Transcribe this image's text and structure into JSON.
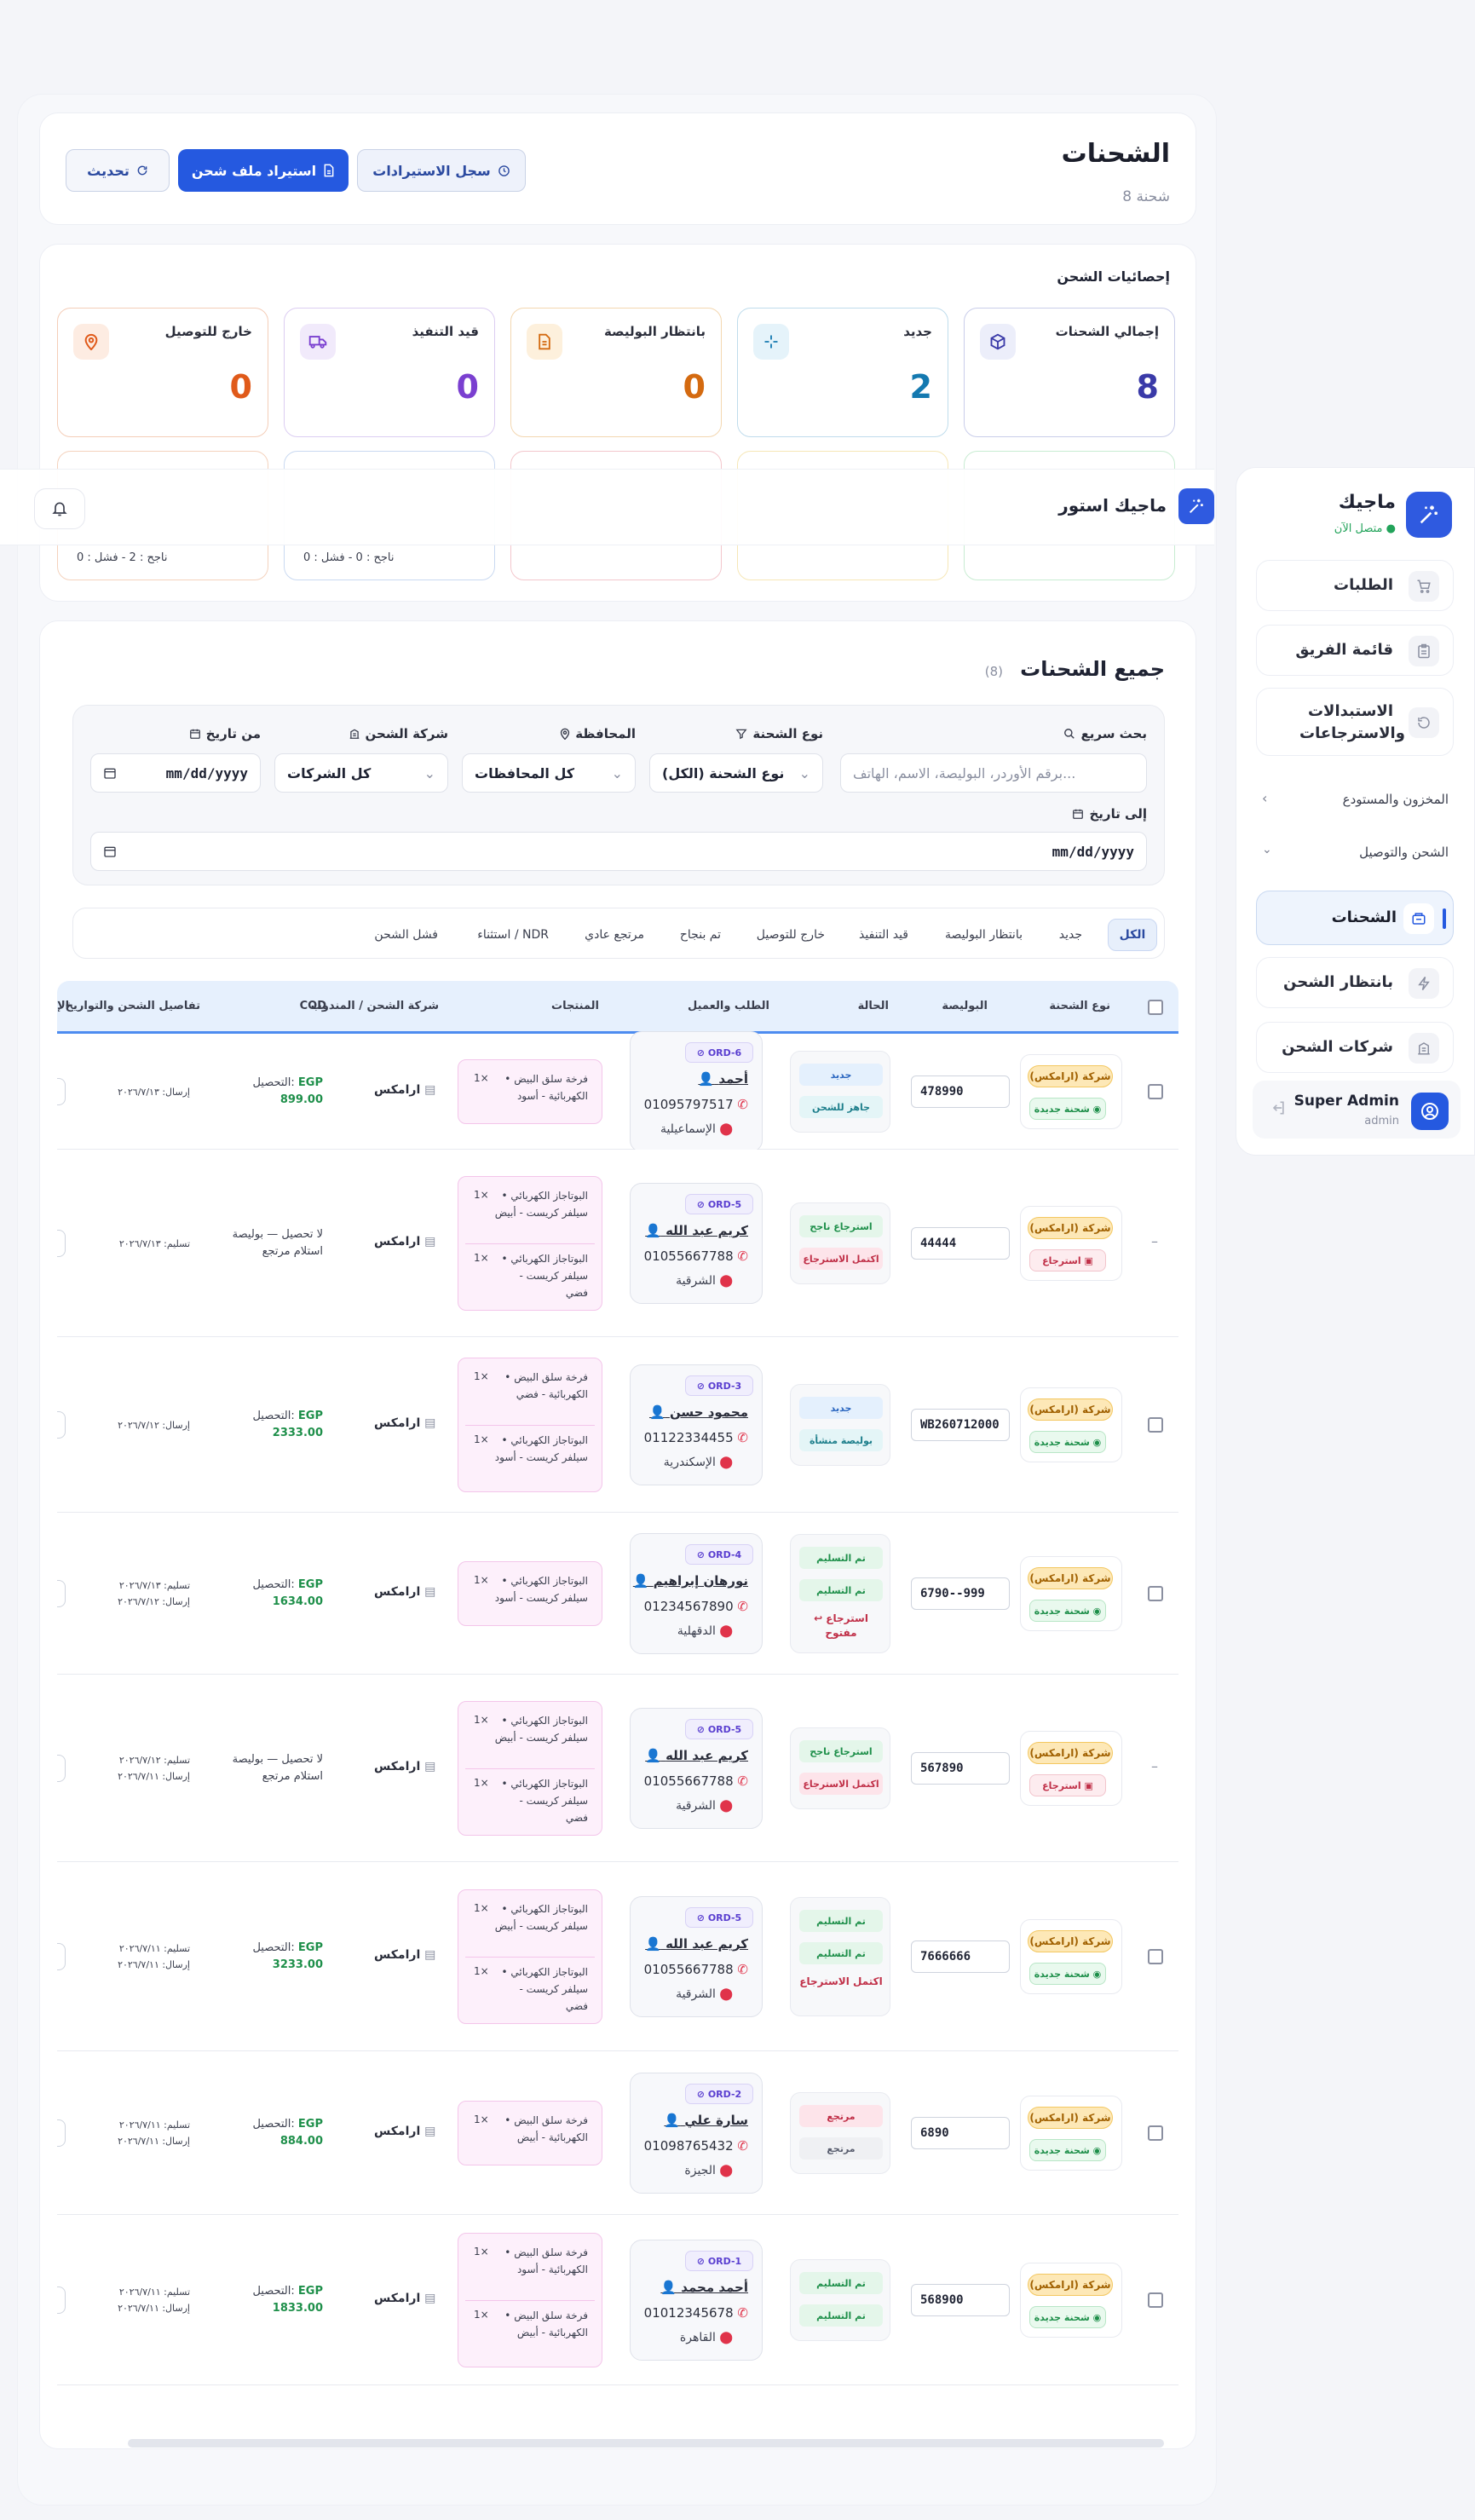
{
  "header": {
    "title": "الشحنات",
    "subtitle": "8 شحنة",
    "btn_refresh": "تحديث",
    "btn_import": "استيراد ملف شحن",
    "btn_log": "سجل الاستيرادات"
  },
  "stats": {
    "title": "إحصائيات الشحن",
    "cards": [
      {
        "label": "إجمالي الشحنات",
        "value": "8",
        "color": "#3a3aa8"
      },
      {
        "label": "جديد",
        "value": "2",
        "color": "#1479b0"
      },
      {
        "label": "بانتظار البوليصة",
        "value": "0",
        "color": "#d46a10"
      },
      {
        "label": "قيد التنفيذ",
        "value": "0",
        "color": "#7a3fd0"
      },
      {
        "label": "خارج للتوصيل",
        "value": "0",
        "color": "#e05a1a"
      }
    ],
    "row2_notes": [
      "ناجح : 2 - فشل : 0",
      "ناجح : 0 - فشل : 0"
    ]
  },
  "topbar": {
    "store_name": "ماجيك استور"
  },
  "sidebar": {
    "title": "ماجيك",
    "status": "متصل الآن",
    "items": [
      {
        "label": "الطلبات"
      },
      {
        "label": "قائمة الفريق"
      },
      {
        "label": "الاستبدالات والاسترجاعات"
      }
    ],
    "section_warehouse": "المخزون والمستودع",
    "section_shipping": "الشحن والتوصيل",
    "sub_items": [
      {
        "label": "الشحنات"
      },
      {
        "label": "بانتظار الشحن"
      },
      {
        "label": "شركات الشحن"
      }
    ],
    "user_name": "Super Admin",
    "user_role": "admin"
  },
  "table_section": {
    "title": "جميع الشحنات",
    "count": "(8)",
    "filters": {
      "search_label": "بحث سريع",
      "search_placeholder": "برقم الأوردر، البوليصة، الاسم، الهاتف...",
      "type_label": "نوع الشحنة",
      "type_value": "نوع الشحنة (الكل)",
      "gov_label": "المحافظة",
      "gov_value": "كل المحافظات",
      "company_label": "شركة الشحن",
      "company_value": "كل الشركات",
      "from_label": "من تاريخ",
      "from_value": "mm/dd/yyyy",
      "to_label": "إلى تاريخ",
      "to_value": "mm/dd/yyyy"
    },
    "tabs": [
      "الكل",
      "جديد",
      "بانتظار البوليصة",
      "قيد التنفيذ",
      "خارج للتوصيل",
      "تم بنجاح",
      "مرتجع عادي",
      "استثناء / NDR",
      "فشل الشحن"
    ],
    "columns": {
      "type": "نوع الشحنة",
      "awb": "البوليصة",
      "status": "الحالة",
      "order": "الطلب والعميل",
      "products": "المنتجات",
      "carrier": "شركة الشحن / المندوب",
      "cod": "COD",
      "details": "تفاصيل الشحن والتواريخ",
      "cut": "الإ"
    },
    "carrier_name": "ارامكس",
    "company_badge": "شركة (ارامكس)",
    "cod_prefix": "التحصيل:",
    "currency": "EGP",
    "rows": [
      {
        "kind": "شحنة جديدة",
        "awb": "478990",
        "statuses": [
          "جديد",
          "جاهز للشحن"
        ],
        "order": "ORD-6",
        "name": "أحمد",
        "phone": "01095797517",
        "city": "الإسماعيلية",
        "products": [
          {
            "name": "• فرخة سلق البيض الكهربائية - أسود",
            "qty": "1×"
          }
        ],
        "cod_amount": "899.00",
        "cod_text": "",
        "dates": [
          "إرسال: ٢٠٢٦/٧/١٣"
        ]
      },
      {
        "kind": "استرجاع",
        "awb": "44444",
        "statuses": [
          "استرجاع ناجح",
          "اكتمل الاسترجاع"
        ],
        "order": "ORD-5",
        "name": "كريم عبد الله",
        "phone": "01055667788",
        "city": "الشرقية",
        "products": [
          {
            "name": "• البوتاجاز الكهربائي سيلفر كريست - أبيض",
            "qty": "1×"
          },
          {
            "name": "• البوتاجاز الكهربائي سيلفر كريست - فضي",
            "qty": "1×"
          }
        ],
        "cod_amount": "",
        "cod_text": "لا تحصيل — بوليصة استلام مرتجع",
        "dates": [
          "تسليم: ٢٠٢٦/٧/١٣"
        ]
      },
      {
        "kind": "شحنة جديدة",
        "awb": "WB260712000",
        "statuses": [
          "جديد",
          "بوليصة منشأة"
        ],
        "order": "ORD-3",
        "name": "محمود حسن",
        "phone": "01122334455",
        "city": "الإسكندرية",
        "products": [
          {
            "name": "• فرخة سلق البيض الكهربائية - فضي",
            "qty": "1×"
          },
          {
            "name": "• البوتاجاز الكهربائي سيلفر كريست - أسود",
            "qty": "1×"
          }
        ],
        "cod_amount": "2333.00",
        "cod_text": "",
        "dates": [
          "إرسال: ٢٠٢٦/٧/١٢"
        ]
      },
      {
        "kind": "شحنة جديدة",
        "awb": "6790--999",
        "statuses": [
          "تم التسليم",
          "تم التسليم",
          "↩ استرجاع مفتوح"
        ],
        "order": "ORD-4",
        "name": "نورهان إبراهيم",
        "phone": "01234567890",
        "city": "الدقهلية",
        "products": [
          {
            "name": "• البوتاجاز الكهربائي سيلفر كريست - أسود",
            "qty": "1×"
          }
        ],
        "cod_amount": "1634.00",
        "cod_text": "",
        "dates": [
          "تسليم: ٢٠٢٦/٧/١٣",
          "إرسال: ٢٠٢٦/٧/١٢"
        ]
      },
      {
        "kind": "استرجاع",
        "awb": "567890",
        "statuses": [
          "استرجاع ناجح",
          "اكتمل الاسترجاع"
        ],
        "order": "ORD-5",
        "name": "كريم عبد الله",
        "phone": "01055667788",
        "city": "الشرقية",
        "products": [
          {
            "name": "• البوتاجاز الكهربائي سيلفر كريست - أبيض",
            "qty": "1×"
          },
          {
            "name": "• البوتاجاز الكهربائي سيلفر كريست - فضي",
            "qty": "1×"
          }
        ],
        "cod_amount": "",
        "cod_text": "لا تحصيل — بوليصة استلام مرتجع",
        "dates": [
          "تسليم: ٢٠٢٦/٧/١٢",
          "إرسال: ٢٠٢٦/٧/١١"
        ]
      },
      {
        "kind": "شحنة جديدة",
        "awb": "7666666",
        "statuses": [
          "تم التسليم",
          "تم التسليم",
          "اكتمل الاسترجاع"
        ],
        "order": "ORD-5",
        "name": "كريم عبد الله",
        "phone": "01055667788",
        "city": "الشرقية",
        "products": [
          {
            "name": "• البوتاجاز الكهربائي سيلفر كريست - أبيض",
            "qty": "1×"
          },
          {
            "name": "• البوتاجاز الكهربائي سيلفر كريست - فضي",
            "qty": "1×"
          }
        ],
        "cod_amount": "3233.00",
        "cod_text": "",
        "dates": [
          "تسليم: ٢٠٢٦/٧/١١",
          "إرسال: ٢٠٢٦/٧/١١"
        ]
      },
      {
        "kind": "شحنة جديدة",
        "awb": "6890",
        "statuses": [
          "مرتجع",
          "مرتجع"
        ],
        "order": "ORD-2",
        "name": "سارة علي",
        "phone": "01098765432",
        "city": "الجيزة",
        "products": [
          {
            "name": "• فرخة سلق البيض الكهربائية - أبيض",
            "qty": "1×"
          }
        ],
        "cod_amount": "884.00",
        "cod_text": "",
        "dates": [
          "تسليم: ٢٠٢٦/٧/١١",
          "إرسال: ٢٠٢٦/٧/١١"
        ]
      },
      {
        "kind": "شحنة جديدة",
        "awb": "568900",
        "statuses": [
          "تم التسليم",
          "تم التسليم"
        ],
        "order": "ORD-1",
        "name": "أحمد محمد",
        "phone": "01012345678",
        "city": "القاهرة",
        "products": [
          {
            "name": "• فرخة سلق البيض الكهربائية - أسود",
            "qty": "1×"
          },
          {
            "name": "• فرخة سلق البيض الكهربائية - أبيض",
            "qty": "1×"
          }
        ],
        "cod_amount": "1833.00",
        "cod_text": "",
        "dates": [
          "تسليم: ٢٠٢٦/٧/١١",
          "إرسال: ٢٠٢٦/٧/١١"
        ]
      }
    ]
  },
  "colors": {
    "accent": "#2559e0",
    "green": "#1e8f4a",
    "purple": "#5a3fd0",
    "border_blue": "#4d8cf0"
  }
}
